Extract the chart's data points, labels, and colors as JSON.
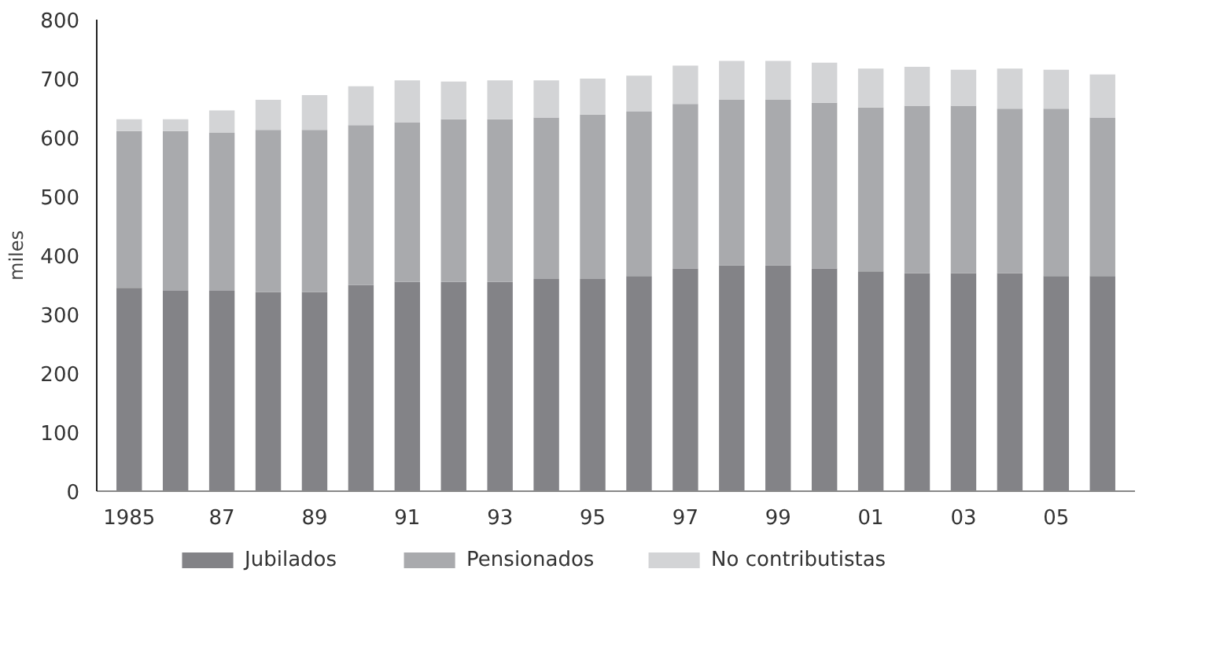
{
  "chart_data": {
    "type": "bar",
    "stacked": true,
    "ylabel": "miles",
    "categories": [
      "1985",
      null,
      "87",
      null,
      "89",
      null,
      "91",
      null,
      "93",
      null,
      "95",
      null,
      "97",
      null,
      "99",
      null,
      "01",
      null,
      "03",
      null,
      "05",
      null
    ],
    "series": [
      {
        "name": "Jubilados",
        "color": "#838387",
        "values": [
          345,
          340,
          340,
          338,
          338,
          350,
          355,
          355,
          355,
          360,
          360,
          365,
          378,
          383,
          383,
          378,
          373,
          370,
          370,
          370,
          365,
          365
        ]
      },
      {
        "name": "Pensionados",
        "color": "#a9aaad",
        "values": [
          266,
          271,
          268,
          275,
          275,
          271,
          271,
          276,
          276,
          274,
          279,
          279,
          279,
          281,
          281,
          281,
          278,
          284,
          284,
          279,
          284,
          269
        ]
      },
      {
        "name": "No contributistas",
        "color": "#d3d4d6",
        "values": [
          20,
          20,
          38,
          51,
          59,
          66,
          71,
          64,
          66,
          63,
          61,
          61,
          65,
          66,
          66,
          68,
          66,
          66,
          61,
          68,
          66,
          73
        ]
      }
    ],
    "ylim": [
      0,
      800
    ],
    "yticks": [
      0,
      100,
      200,
      300,
      400,
      500,
      600,
      700,
      800
    ],
    "grid": false,
    "legend": "bottom"
  }
}
